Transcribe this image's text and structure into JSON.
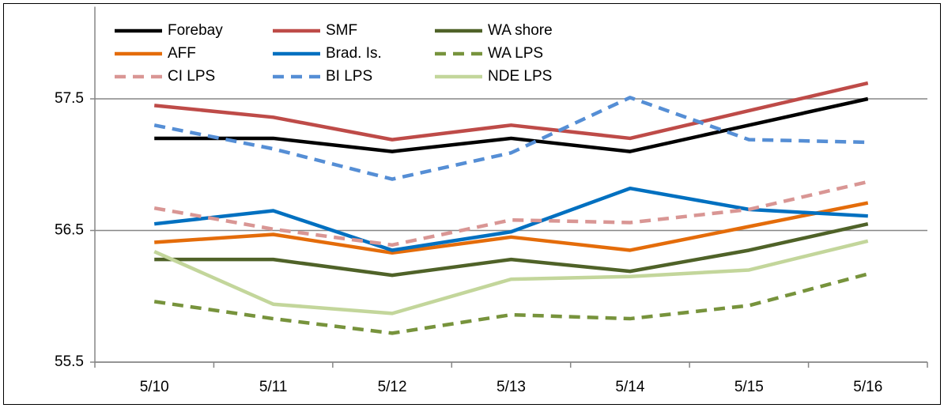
{
  "chart_data": {
    "type": "line",
    "categories": [
      "5/10",
      "5/11",
      "5/12",
      "5/13",
      "5/14",
      "5/15",
      "5/16"
    ],
    "ylim": [
      55.5,
      58.2
    ],
    "yticks": [
      55.5,
      56.5,
      57.5
    ],
    "grid": true,
    "series": [
      {
        "name": "Forebay",
        "color": "#000000",
        "dashed": false,
        "values": [
          57.2,
          57.2,
          57.1,
          57.2,
          57.1,
          57.3,
          57.5
        ]
      },
      {
        "name": "SMF",
        "color": "#be4b48",
        "dashed": false,
        "values": [
          57.45,
          57.36,
          57.19,
          57.3,
          57.2,
          57.41,
          57.62
        ]
      },
      {
        "name": "WA shore",
        "color": "#4f6228",
        "dashed": false,
        "values": [
          56.28,
          56.28,
          56.16,
          56.28,
          56.19,
          56.35,
          56.55
        ]
      },
      {
        "name": "AFF",
        "color": "#e46c0a",
        "dashed": false,
        "values": [
          56.41,
          56.47,
          56.33,
          56.45,
          56.35,
          56.53,
          56.71
        ]
      },
      {
        "name": "Brad. Is.",
        "color": "#0070c0",
        "dashed": false,
        "values": [
          56.55,
          56.65,
          56.35,
          56.49,
          56.82,
          56.66,
          56.61
        ]
      },
      {
        "name": "WA LPS",
        "color": "#77933c",
        "dashed": true,
        "values": [
          55.96,
          55.83,
          55.72,
          55.86,
          55.83,
          55.93,
          56.17
        ]
      },
      {
        "name": "CI LPS",
        "color": "#d99694",
        "dashed": true,
        "values": [
          56.67,
          56.51,
          56.39,
          56.58,
          56.56,
          56.66,
          56.87
        ]
      },
      {
        "name": "BI LPS",
        "color": "#558ed5",
        "dashed": true,
        "values": [
          57.3,
          57.12,
          56.89,
          57.09,
          57.51,
          57.19,
          57.17
        ]
      },
      {
        "name": "NDE LPS",
        "color": "#c3d69b",
        "dashed": false,
        "values": [
          56.34,
          55.94,
          55.87,
          56.13,
          56.15,
          56.2,
          56.42
        ]
      }
    ]
  }
}
